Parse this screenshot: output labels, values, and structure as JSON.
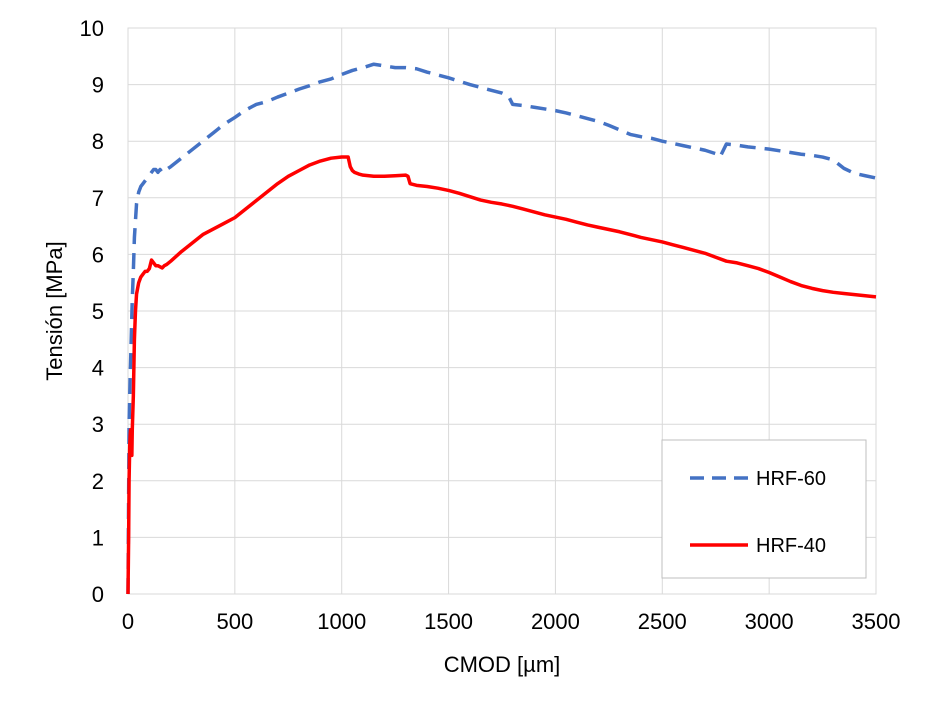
{
  "chart_data": {
    "type": "line",
    "title": "",
    "xlabel": "CMOD [µm]",
    "ylabel": "Tensión [MPa]",
    "xlim": [
      0,
      3500
    ],
    "ylim": [
      0,
      10
    ],
    "xticks": [
      0,
      500,
      1000,
      1500,
      2000,
      2500,
      3000,
      3500
    ],
    "yticks": [
      0,
      1,
      2,
      3,
      4,
      5,
      6,
      7,
      8,
      9,
      10
    ],
    "grid": true,
    "legend_position": "bottom-right",
    "series": [
      {
        "name": "HRF-60",
        "color": "#4472C4",
        "style": "dashed",
        "x": [
          0,
          5,
          10,
          15,
          20,
          25,
          30,
          40,
          50,
          60,
          70,
          80,
          90,
          100,
          110,
          120,
          130,
          140,
          150,
          160,
          170,
          180,
          200,
          250,
          300,
          350,
          400,
          450,
          500,
          550,
          600,
          650,
          700,
          750,
          800,
          850,
          900,
          950,
          1000,
          1050,
          1100,
          1150,
          1200,
          1250,
          1300,
          1350,
          1400,
          1450,
          1500,
          1550,
          1600,
          1650,
          1700,
          1750,
          1780,
          1800,
          1850,
          1900,
          1950,
          2000,
          2050,
          2100,
          2150,
          2200,
          2250,
          2300,
          2350,
          2400,
          2450,
          2500,
          2550,
          2600,
          2650,
          2700,
          2750,
          2770,
          2800,
          2850,
          2900,
          2950,
          3000,
          3050,
          3100,
          3150,
          3200,
          3250,
          3300,
          3350,
          3400,
          3450,
          3500
        ],
        "y": [
          0,
          3.0,
          3.8,
          4.5,
          5.2,
          5.7,
          6.3,
          6.9,
          7.1,
          7.2,
          7.25,
          7.3,
          7.35,
          7.4,
          7.45,
          7.5,
          7.5,
          7.45,
          7.5,
          7.45,
          7.5,
          7.5,
          7.55,
          7.7,
          7.85,
          8.0,
          8.15,
          8.3,
          8.42,
          8.55,
          8.65,
          8.7,
          8.78,
          8.85,
          8.92,
          8.98,
          9.05,
          9.1,
          9.18,
          9.25,
          9.3,
          9.36,
          9.33,
          9.3,
          9.3,
          9.28,
          9.22,
          9.17,
          9.12,
          9.06,
          9.0,
          8.95,
          8.9,
          8.85,
          8.8,
          8.65,
          8.63,
          8.6,
          8.57,
          8.54,
          8.5,
          8.45,
          8.4,
          8.35,
          8.28,
          8.2,
          8.12,
          8.08,
          8.05,
          8.0,
          7.96,
          7.92,
          7.88,
          7.84,
          7.78,
          7.72,
          7.95,
          7.93,
          7.9,
          7.88,
          7.86,
          7.83,
          7.8,
          7.77,
          7.75,
          7.72,
          7.67,
          7.52,
          7.43,
          7.39,
          7.35
        ]
      },
      {
        "name": "HRF-40",
        "color": "#FF0000",
        "style": "solid",
        "x": [
          0,
          3,
          5,
          8,
          10,
          12,
          15,
          18,
          20,
          25,
          30,
          35,
          40,
          50,
          60,
          70,
          80,
          90,
          100,
          110,
          120,
          130,
          140,
          150,
          160,
          170,
          180,
          200,
          250,
          300,
          350,
          400,
          450,
          500,
          550,
          600,
          650,
          700,
          750,
          800,
          850,
          900,
          950,
          1000,
          1030,
          1040,
          1050,
          1060,
          1080,
          1100,
          1150,
          1200,
          1250,
          1300,
          1310,
          1320,
          1350,
          1400,
          1450,
          1500,
          1550,
          1600,
          1650,
          1700,
          1750,
          1800,
          1850,
          1900,
          1950,
          2000,
          2050,
          2100,
          2150,
          2200,
          2250,
          2300,
          2350,
          2400,
          2450,
          2500,
          2550,
          2600,
          2650,
          2700,
          2750,
          2800,
          2850,
          2900,
          2950,
          3000,
          3050,
          3100,
          3150,
          3200,
          3250,
          3300,
          3350,
          3400,
          3450,
          3500
        ],
        "y": [
          0,
          1.0,
          2.0,
          2.6,
          2.8,
          2.9,
          2.6,
          2.45,
          2.9,
          3.5,
          4.5,
          5.0,
          5.3,
          5.5,
          5.6,
          5.65,
          5.7,
          5.7,
          5.75,
          5.9,
          5.85,
          5.8,
          5.8,
          5.78,
          5.76,
          5.8,
          5.82,
          5.88,
          6.05,
          6.2,
          6.35,
          6.45,
          6.55,
          6.65,
          6.8,
          6.95,
          7.1,
          7.25,
          7.38,
          7.48,
          7.58,
          7.65,
          7.7,
          7.72,
          7.72,
          7.55,
          7.48,
          7.45,
          7.42,
          7.4,
          7.38,
          7.38,
          7.39,
          7.4,
          7.38,
          7.25,
          7.22,
          7.2,
          7.17,
          7.13,
          7.08,
          7.02,
          6.96,
          6.92,
          6.89,
          6.85,
          6.8,
          6.75,
          6.7,
          6.66,
          6.62,
          6.57,
          6.52,
          6.48,
          6.44,
          6.4,
          6.35,
          6.3,
          6.26,
          6.22,
          6.17,
          6.12,
          6.07,
          6.02,
          5.95,
          5.88,
          5.85,
          5.8,
          5.75,
          5.68,
          5.6,
          5.52,
          5.45,
          5.4,
          5.36,
          5.33,
          5.31,
          5.29,
          5.27,
          5.25
        ]
      }
    ]
  }
}
